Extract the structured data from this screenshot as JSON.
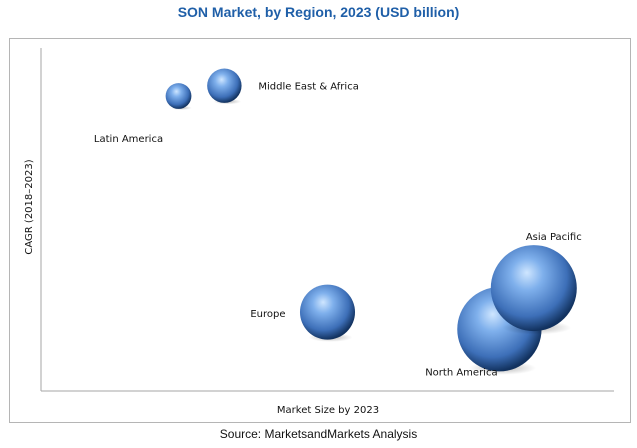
{
  "chart_data": {
    "type": "bubble",
    "title": "SON Market, by Region, 2023 (USD billion)",
    "xlabel": "Market Size by 2023",
    "ylabel": "CAGR (2018–2023)",
    "grid": false,
    "legend": "none",
    "series": [
      {
        "name": "Latin America",
        "x": 1.2,
        "y": 8.6,
        "size": 1.5
      },
      {
        "name": "Middle East & Africa",
        "x": 1.6,
        "y": 8.9,
        "size": 2.0
      },
      {
        "name": "Europe",
        "x": 2.5,
        "y": 2.3,
        "size": 3.2
      },
      {
        "name": "North America",
        "x": 4.0,
        "y": 1.8,
        "size": 4.9
      },
      {
        "name": "Asia Pacific",
        "x": 4.3,
        "y": 3.0,
        "size": 5.0
      }
    ],
    "colors": {
      "bubble": "#3d6fb8",
      "bubble_highlight": "#cfe6ff",
      "bubble_shadow": "#12325f"
    }
  },
  "source": "Source: MarketsandMarkets Analysis"
}
